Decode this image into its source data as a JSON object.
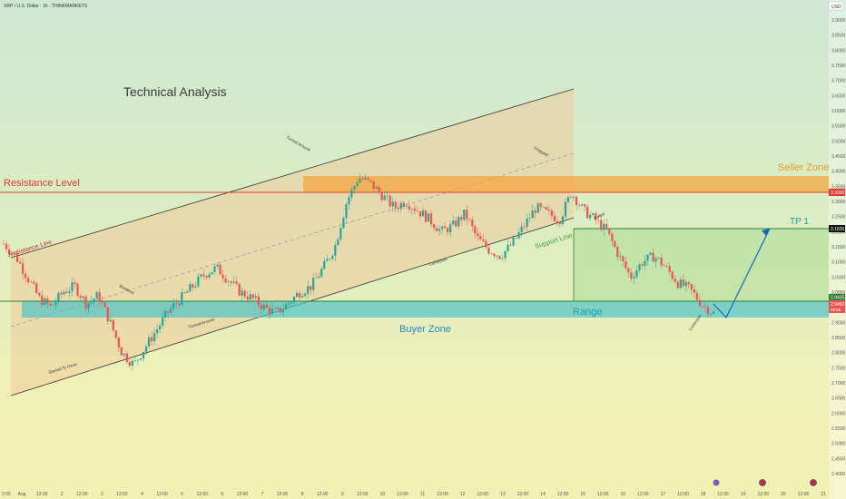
{
  "header": {
    "symbol_line": "XRP / U.S. Dollar · 1h · THINKMARKETS",
    "currency_label": "USD"
  },
  "chart_data": {
    "type": "candlestick",
    "title": "Technical Analysis",
    "ylim": [
      2.4,
      3.9
    ],
    "y_axis_ticks": [
      3.9,
      3.85,
      3.8,
      3.75,
      3.7,
      3.65,
      3.6,
      3.55,
      3.5,
      3.45,
      3.4,
      3.35,
      3.3,
      3.25,
      3.2,
      3.15,
      3.1,
      3.05,
      3.0,
      2.95,
      2.9,
      2.85,
      2.8,
      2.75,
      2.7,
      2.65,
      2.6,
      2.55,
      2.5,
      2.45,
      2.4
    ],
    "x_axis_ticks": [
      "2:00",
      "Aug",
      "12:00",
      "2",
      "12:00",
      "3",
      "12:00",
      "4",
      "12:00",
      "5",
      "12:00",
      "6",
      "12:00",
      "7",
      "12:00",
      "8",
      "12:00",
      "9",
      "12:00",
      "10",
      "12:00",
      "11",
      "12:00",
      "12",
      "12:00",
      "13",
      "12:00",
      "14",
      "12:00",
      "15",
      "12:00",
      "16",
      "12:00",
      "17",
      "12:00",
      "18",
      "12:00",
      "19",
      "12:00",
      "20",
      "12:00",
      "21"
    ],
    "price_path": [
      3.16,
      3.12,
      3.05,
      2.98,
      2.95,
      3.0,
      3.02,
      2.96,
      2.99,
      2.9,
      2.8,
      2.76,
      2.82,
      2.88,
      2.94,
      2.98,
      3.02,
      3.06,
      3.08,
      3.04,
      3.0,
      2.98,
      2.95,
      2.93,
      2.96,
      3.0,
      3.02,
      3.08,
      3.15,
      3.3,
      3.38,
      3.36,
      3.32,
      3.28,
      3.3,
      3.27,
      3.24,
      3.2,
      3.22,
      3.26,
      3.18,
      3.14,
      3.12,
      3.16,
      3.22,
      3.28,
      3.26,
      3.24,
      3.33,
      3.27,
      3.24,
      3.2,
      3.12,
      3.05,
      3.1,
      3.12,
      3.08,
      3.03,
      3.01,
      2.96,
      2.93
    ],
    "current_price": 2.945,
    "labels": {
      "resistance_level": "Resistance Level",
      "resistance_line": "Resistance Line",
      "seller_zone": "Seller Zone",
      "tp1": "TP 1",
      "support_line": "Support Line",
      "range": "Range",
      "buyer_zone": "Buyer Zone"
    },
    "annotations": [
      "Started To Grow",
      "Breakout",
      "Turned Around",
      "Turned Around",
      "Correction",
      "Dropped",
      "Exited",
      "Correction"
    ],
    "levels": {
      "resistance": 3.3,
      "tp1": 3.183,
      "range_top": 2.9425,
      "seller_zone": [
        3.3,
        3.35
      ],
      "buyer_zone": [
        2.9,
        2.94
      ]
    },
    "price_tags": [
      "3.3000",
      "3.1830",
      "2.9425",
      "2.9450",
      "09:56"
    ],
    "colors": {
      "channel_fill": "#f0c79a",
      "seller_zone": "#f4a640",
      "buyer_zone": "#4ec3c7",
      "resistance": "#e53935",
      "tp1_line": "#2e7d32",
      "projection": "#1565c0",
      "candle_up": "#26a69a",
      "candle_down": "#ef5350",
      "seller_label": "#e89a2c",
      "buyer_label": "#1e88c8",
      "range_label": "#1aa3a8"
    }
  }
}
